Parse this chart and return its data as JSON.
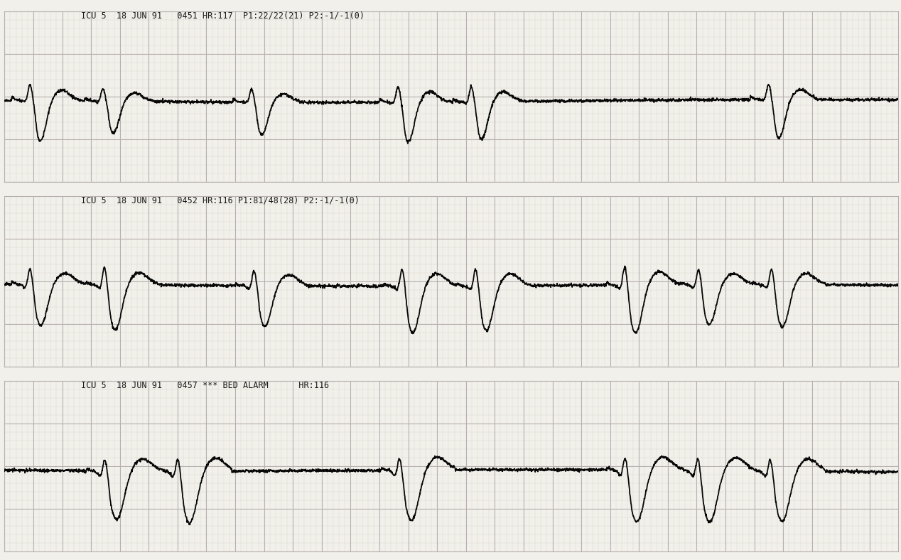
{
  "strip1_header": "ICU 5  18 JUN 91   0451 HR:117  P1:22/22(21) P2:-1/-1(0)",
  "strip2_header": "ICU 5  18 JUN 91   0452 HR:116 P1:81/48(28) P2:-1/-1(0)",
  "strip3_header": "ICU 5  18 JUN 91   0457 *** BED ALARM      HR:116",
  "background_color": "#f2f0ea",
  "grid_major_color": "#b8b0b0",
  "grid_minor_color": "#ddd8d0",
  "ecg_color": "#080808",
  "header_color": "#1a1a1a",
  "header_fontsize": 8.5,
  "ecg_linewidth": 1.3,
  "hr_strip1": 117,
  "hr_strip2": 116,
  "hr_strip3": 116,
  "n_minor_cols": 125,
  "n_minor_rows": 20,
  "n_major_cols": 25,
  "n_major_rows": 4
}
